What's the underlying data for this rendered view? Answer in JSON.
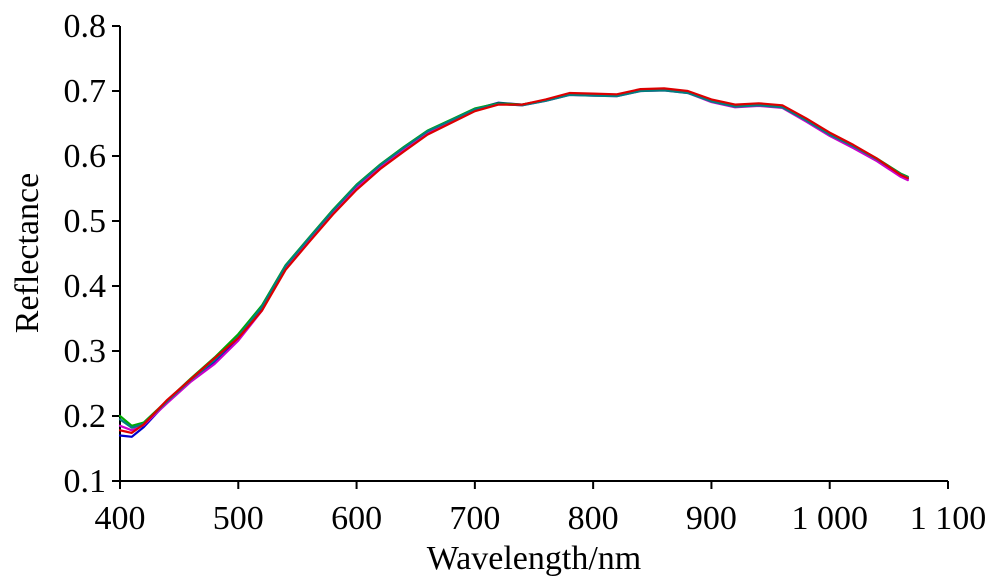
{
  "chart_data": {
    "type": "line",
    "title": "",
    "xlabel": "Wavelength/nm",
    "ylabel": "Reflectance",
    "xlim": [
      400,
      1100
    ],
    "ylim": [
      0.1,
      0.8
    ],
    "xticks": [
      400,
      500,
      600,
      700,
      800,
      900,
      1000,
      1100
    ],
    "xtick_labels": [
      "400",
      "500",
      "600",
      "700",
      "800",
      "900",
      "1 000",
      "1 100"
    ],
    "yticks": [
      0.1,
      0.2,
      0.3,
      0.4,
      0.5,
      0.6,
      0.7,
      0.8
    ],
    "ytick_labels": [
      "0.1",
      "0.2",
      "0.3",
      "0.4",
      "0.5",
      "0.6",
      "0.7",
      "0.8"
    ],
    "grid": false,
    "legend": "none",
    "x": [
      400,
      410,
      420,
      440,
      460,
      480,
      500,
      520,
      540,
      560,
      580,
      600,
      620,
      640,
      660,
      680,
      700,
      720,
      740,
      760,
      780,
      800,
      820,
      840,
      860,
      880,
      900,
      920,
      940,
      960,
      980,
      1000,
      1020,
      1040,
      1060,
      1066
    ],
    "series": [
      {
        "color": "#0000cc",
        "values": [
          0.17,
          0.168,
          0.183,
          0.222,
          0.255,
          0.283,
          0.318,
          0.365,
          0.43,
          0.473,
          0.515,
          0.554,
          0.585,
          0.612,
          0.637,
          0.654,
          0.672,
          0.682,
          0.679,
          0.686,
          0.696,
          0.694,
          0.693,
          0.701,
          0.702,
          0.699,
          0.684,
          0.676,
          0.678,
          0.675,
          0.654,
          0.632,
          0.614,
          0.593,
          0.57,
          0.565
        ]
      },
      {
        "color": "#cc00cc",
        "values": [
          0.185,
          0.178,
          0.186,
          0.22,
          0.253,
          0.28,
          0.316,
          0.362,
          0.428,
          0.471,
          0.513,
          0.552,
          0.583,
          0.61,
          0.635,
          0.652,
          0.67,
          0.68,
          0.678,
          0.685,
          0.694,
          0.693,
          0.692,
          0.7,
          0.701,
          0.697,
          0.683,
          0.675,
          0.677,
          0.674,
          0.653,
          0.631,
          0.612,
          0.592,
          0.568,
          0.563
        ]
      },
      {
        "color": "#00aa00",
        "values": [
          0.2,
          0.185,
          0.19,
          0.224,
          0.258,
          0.29,
          0.326,
          0.37,
          0.432,
          0.475,
          0.517,
          0.556,
          0.587,
          0.614,
          0.639,
          0.656,
          0.673,
          0.681,
          0.679,
          0.686,
          0.695,
          0.694,
          0.693,
          0.701,
          0.702,
          0.698,
          0.685,
          0.677,
          0.679,
          0.676,
          0.656,
          0.634,
          0.616,
          0.596,
          0.573,
          0.568
        ]
      },
      {
        "color": "#008080",
        "values": [
          0.195,
          0.182,
          0.188,
          0.223,
          0.256,
          0.286,
          0.322,
          0.368,
          0.431,
          0.474,
          0.516,
          0.555,
          0.586,
          0.613,
          0.638,
          0.655,
          0.672,
          0.68,
          0.678,
          0.685,
          0.694,
          0.693,
          0.692,
          0.7,
          0.701,
          0.697,
          0.684,
          0.676,
          0.678,
          0.675,
          0.655,
          0.633,
          0.615,
          0.595,
          0.572,
          0.567
        ]
      },
      {
        "color": "#dd0000",
        "values": [
          0.178,
          0.174,
          0.187,
          0.225,
          0.257,
          0.289,
          0.32,
          0.362,
          0.425,
          0.468,
          0.51,
          0.548,
          0.58,
          0.607,
          0.633,
          0.651,
          0.669,
          0.679,
          0.679,
          0.687,
          0.697,
          0.696,
          0.695,
          0.703,
          0.704,
          0.7,
          0.687,
          0.679,
          0.681,
          0.678,
          0.658,
          0.636,
          0.617,
          0.596,
          0.571,
          0.566
        ]
      }
    ]
  }
}
